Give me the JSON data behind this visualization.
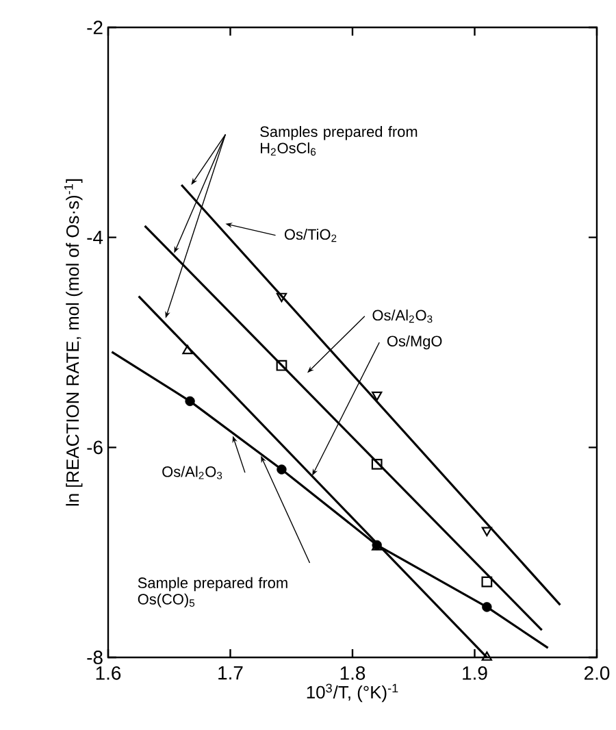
{
  "chart_data": {
    "type": "scatter",
    "xlabel": "10$^{3}$/T, (°K)$^{-1}$",
    "ylabel": "ln [REACTION RATE, mol (mol of Os·s)$^{-1}$]",
    "xlim": [
      1.6,
      2.0
    ],
    "ylim": [
      -8,
      -2
    ],
    "xticks": [
      1.6,
      1.7,
      1.8,
      1.9,
      {
        "value": 2.0,
        "label": "2.0"
      }
    ],
    "yticks": [
      -8,
      -6,
      -4,
      -2
    ],
    "grid": false,
    "series": [
      {
        "marker": "triangle-down",
        "color": "#000000",
        "x": [
          1.742,
          1.82,
          1.91
        ],
        "values": [
          -4.56,
          -5.5,
          -6.79
        ]
      },
      {
        "type": "line",
        "color": "#000000",
        "x": [
          1.66,
          1.97
        ],
        "values": [
          -3.5,
          -7.5
        ]
      },
      {
        "marker": "square",
        "color": "#000000",
        "x": [
          1.742,
          1.82,
          1.91
        ],
        "values": [
          -5.22,
          -6.16,
          -7.28
        ]
      },
      {
        "type": "line",
        "color": "#000000",
        "x": [
          1.63,
          1.955
        ],
        "values": [
          -3.89,
          -7.74
        ]
      },
      {
        "marker": "triangle",
        "color": "#000000",
        "x": [
          1.665,
          1.82,
          1.91
        ],
        "values": [
          -5.08,
          -6.95,
          -8.0
        ]
      },
      {
        "type": "line",
        "color": "#000000",
        "x": [
          1.625,
          1.91
        ],
        "values": [
          -4.56,
          -8.0
        ]
      },
      {
        "marker": "circle",
        "color": "#000000",
        "x": [
          1.667,
          1.742,
          1.82,
          1.91
        ],
        "values": [
          -5.56,
          -6.21,
          -6.93,
          -7.52
        ]
      },
      {
        "type": "line",
        "color": "#000000",
        "x": [
          1.603,
          1.667,
          1.742,
          1.82,
          1.91,
          1.96
        ],
        "values": [
          -5.09,
          -5.56,
          -6.21,
          -6.93,
          -7.52,
          -7.91
        ]
      }
    ],
    "annotations": [
      "Samples prepared from H$_{2}$OsCl$_{6}$",
      {
        "text": "Os/TiO$_{2}$",
        "x": 1.696,
        "y": -3.87
      },
      "Os/Al$_{2}$O$_{3}$",
      {
        "text": "Os/MgO",
        "x": 1.767,
        "y": -6.27
      },
      {
        "text": "Os/Al$_{2}$O$_{3}$",
        "x": 1.702,
        "y": -5.89
      },
      "Sample prepared from Os(CO)$_{5}$"
    ]
  }
}
